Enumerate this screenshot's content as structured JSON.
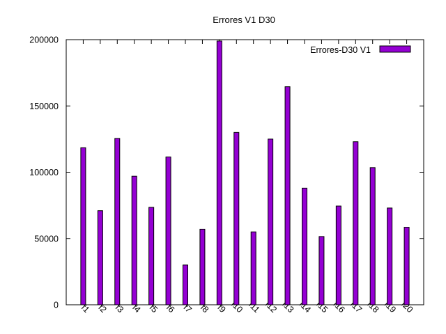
{
  "chart_data": {
    "type": "bar",
    "title": "Errores V1 D30",
    "xlabel": "",
    "ylabel": "",
    "categories": [
      "f1",
      "f2",
      "f3",
      "f4",
      "f5",
      "f6",
      "f7",
      "f8",
      "f9",
      "f10",
      "f11",
      "f12",
      "f13",
      "f14",
      "f15",
      "f16",
      "f17",
      "f18",
      "f19",
      "f20"
    ],
    "series": [
      {
        "name": "Errores-D30 V1",
        "color": "#9400d3",
        "values": [
          118500,
          71000,
          125500,
          97000,
          73500,
          111500,
          30000,
          57000,
          199000,
          130000,
          55000,
          125000,
          164500,
          88000,
          51500,
          74500,
          123000,
          103500,
          73000,
          58500
        ]
      }
    ],
    "ylim": [
      0,
      200000
    ],
    "yticks": [
      "0",
      "50000",
      "100000",
      "150000",
      "200000"
    ],
    "ytick_values": [
      0,
      50000,
      100000,
      150000,
      200000
    ],
    "grid": false,
    "legend_position": "top-right"
  }
}
